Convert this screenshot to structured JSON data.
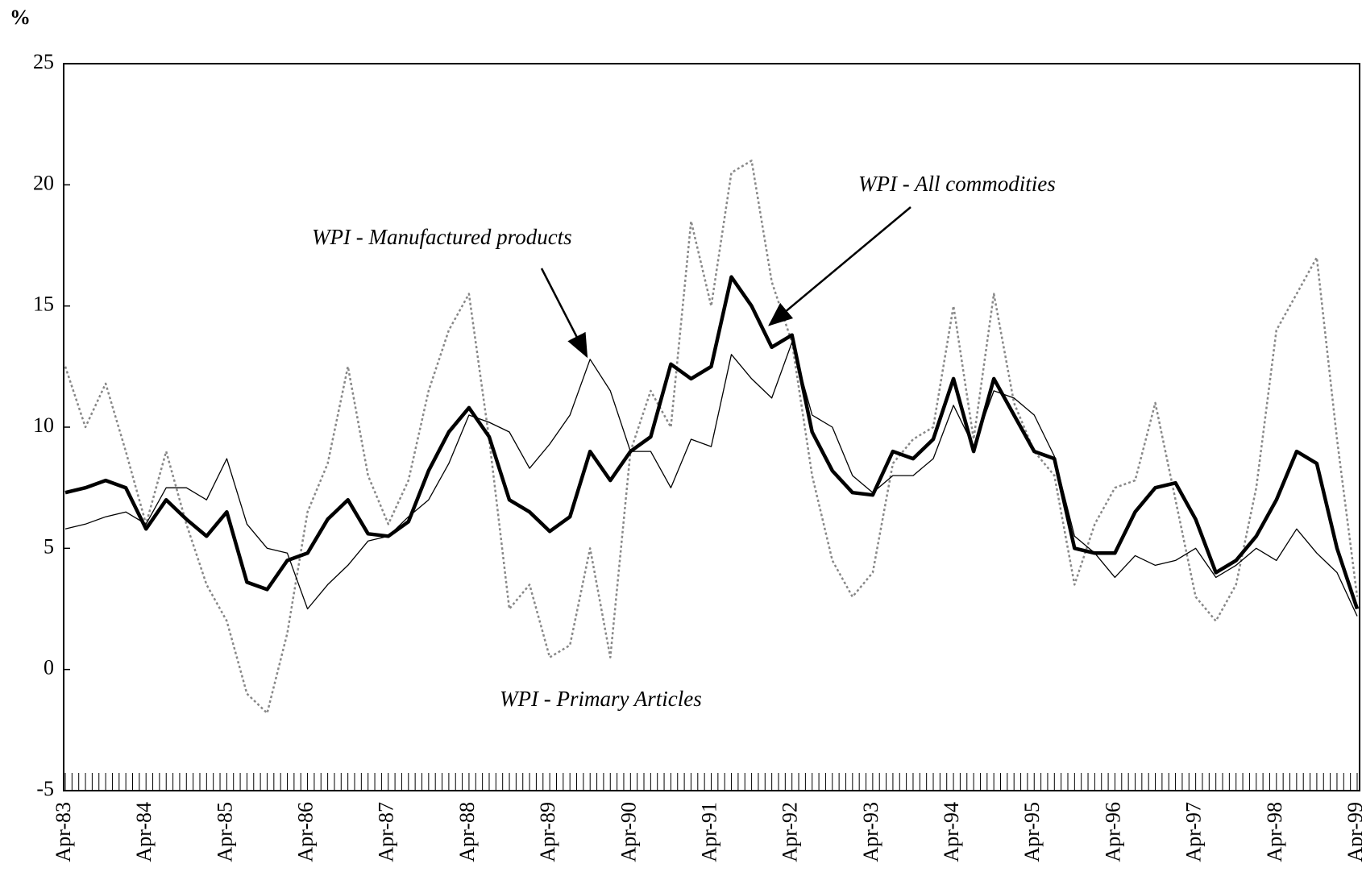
{
  "chart_data": {
    "type": "line",
    "y_label": "%",
    "categories": [
      "Apr-83",
      null,
      null,
      null,
      "Apr-84",
      null,
      null,
      null,
      "Apr-85",
      null,
      null,
      null,
      "Apr-86",
      null,
      null,
      null,
      "Apr-87",
      null,
      null,
      null,
      "Apr-88",
      null,
      null,
      null,
      "Apr-89",
      null,
      null,
      null,
      "Apr-90",
      null,
      null,
      null,
      "Apr-91",
      null,
      null,
      null,
      "Apr-92",
      null,
      null,
      null,
      "Apr-93",
      null,
      null,
      null,
      "Apr-94",
      null,
      null,
      null,
      "Apr-95",
      null,
      null,
      null,
      "Apr-96",
      null,
      null,
      null,
      "Apr-97",
      null,
      null,
      null,
      "Apr-98",
      null,
      null,
      null,
      "Apr-99"
    ],
    "ylim": [
      -5,
      25
    ],
    "yticks": [
      -5,
      0,
      5,
      10,
      15,
      20,
      25
    ],
    "grid": false,
    "series": [
      {
        "name": "WPI - All commodities",
        "color": "#000000",
        "values": [
          7.3,
          7.5,
          7.8,
          7.5,
          5.8,
          7.0,
          6.2,
          5.5,
          6.5,
          3.6,
          3.3,
          4.5,
          4.8,
          6.2,
          7.0,
          5.6,
          5.5,
          6.1,
          8.2,
          9.8,
          10.8,
          9.6,
          7.0,
          6.5,
          5.7,
          6.3,
          9.0,
          7.8,
          9.0,
          9.6,
          12.6,
          12.0,
          12.5,
          16.2,
          15.0,
          13.3,
          13.8,
          9.8,
          8.2,
          7.3,
          7.2,
          9.0,
          8.7,
          9.5,
          12.0,
          9.0,
          12.0,
          10.5,
          9.0,
          8.7,
          5.0,
          4.8,
          4.8,
          6.5,
          7.5,
          7.7,
          6.2,
          4.0,
          4.5,
          5.5,
          7.0,
          9.0,
          8.5,
          5.0,
          2.5
        ]
      },
      {
        "name": "WPI - Manufactured products",
        "color": "#000000",
        "values": [
          5.8,
          6.0,
          6.3,
          6.5,
          6.0,
          7.5,
          7.5,
          7.0,
          8.7,
          6.0,
          5.0,
          4.8,
          2.5,
          3.5,
          4.3,
          5.3,
          5.5,
          6.3,
          7.0,
          8.5,
          10.5,
          10.2,
          9.8,
          8.3,
          9.3,
          10.5,
          12.8,
          11.5,
          9.0,
          9.0,
          7.5,
          9.5,
          9.2,
          13.0,
          12.0,
          11.2,
          13.5,
          10.5,
          10.0,
          8.0,
          7.3,
          8.0,
          8.0,
          8.7,
          10.9,
          9.2,
          11.5,
          11.2,
          10.5,
          8.8,
          5.5,
          4.8,
          3.8,
          4.7,
          4.3,
          4.5,
          5.0,
          3.8,
          4.3,
          5.0,
          4.5,
          5.8,
          4.8,
          4.0,
          2.2
        ]
      },
      {
        "name": "WPI - Primary Articles",
        "color": "#888888",
        "values": [
          12.5,
          10.0,
          11.8,
          9.0,
          6.0,
          9.0,
          6.0,
          3.5,
          2.0,
          -1.0,
          -1.8,
          1.5,
          6.5,
          8.5,
          12.5,
          8.0,
          6.0,
          7.8,
          11.5,
          14.0,
          15.5,
          9.5,
          2.5,
          3.5,
          0.5,
          1.0,
          5.0,
          0.5,
          9.0,
          11.5,
          10.0,
          18.5,
          15.0,
          20.5,
          21.0,
          16.0,
          13.5,
          8.0,
          4.5,
          3.0,
          4.0,
          8.5,
          9.5,
          10.0,
          15.0,
          9.5,
          15.5,
          11.0,
          9.0,
          8.0,
          3.5,
          6.0,
          7.5,
          7.8,
          11.0,
          7.0,
          3.0,
          2.0,
          3.5,
          7.5,
          14.0,
          15.5,
          17.0,
          9.5,
          3.0
        ]
      }
    ]
  }
}
